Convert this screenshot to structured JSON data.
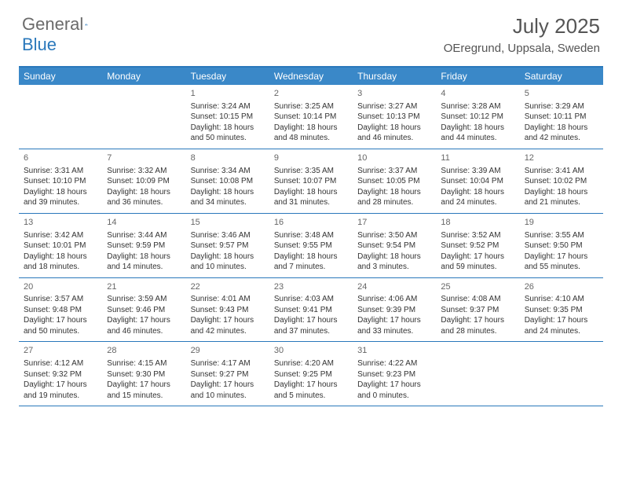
{
  "logo": {
    "part1": "General",
    "part2": "Blue"
  },
  "title": "July 2025",
  "location": "OEregrund, Uppsala, Sweden",
  "day_headers": [
    "Sunday",
    "Monday",
    "Tuesday",
    "Wednesday",
    "Thursday",
    "Friday",
    "Saturday"
  ],
  "colors": {
    "header_bg": "#3a88c8",
    "border": "#2a78bb",
    "logo_gray": "#6b6b6b",
    "logo_blue": "#2a78bb",
    "text": "#333333",
    "muted": "#666666"
  },
  "weeks": [
    [
      null,
      null,
      {
        "n": "1",
        "sunrise": "Sunrise: 3:24 AM",
        "sunset": "Sunset: 10:15 PM",
        "daylight1": "Daylight: 18 hours",
        "daylight2": "and 50 minutes."
      },
      {
        "n": "2",
        "sunrise": "Sunrise: 3:25 AM",
        "sunset": "Sunset: 10:14 PM",
        "daylight1": "Daylight: 18 hours",
        "daylight2": "and 48 minutes."
      },
      {
        "n": "3",
        "sunrise": "Sunrise: 3:27 AM",
        "sunset": "Sunset: 10:13 PM",
        "daylight1": "Daylight: 18 hours",
        "daylight2": "and 46 minutes."
      },
      {
        "n": "4",
        "sunrise": "Sunrise: 3:28 AM",
        "sunset": "Sunset: 10:12 PM",
        "daylight1": "Daylight: 18 hours",
        "daylight2": "and 44 minutes."
      },
      {
        "n": "5",
        "sunrise": "Sunrise: 3:29 AM",
        "sunset": "Sunset: 10:11 PM",
        "daylight1": "Daylight: 18 hours",
        "daylight2": "and 42 minutes."
      }
    ],
    [
      {
        "n": "6",
        "sunrise": "Sunrise: 3:31 AM",
        "sunset": "Sunset: 10:10 PM",
        "daylight1": "Daylight: 18 hours",
        "daylight2": "and 39 minutes."
      },
      {
        "n": "7",
        "sunrise": "Sunrise: 3:32 AM",
        "sunset": "Sunset: 10:09 PM",
        "daylight1": "Daylight: 18 hours",
        "daylight2": "and 36 minutes."
      },
      {
        "n": "8",
        "sunrise": "Sunrise: 3:34 AM",
        "sunset": "Sunset: 10:08 PM",
        "daylight1": "Daylight: 18 hours",
        "daylight2": "and 34 minutes."
      },
      {
        "n": "9",
        "sunrise": "Sunrise: 3:35 AM",
        "sunset": "Sunset: 10:07 PM",
        "daylight1": "Daylight: 18 hours",
        "daylight2": "and 31 minutes."
      },
      {
        "n": "10",
        "sunrise": "Sunrise: 3:37 AM",
        "sunset": "Sunset: 10:05 PM",
        "daylight1": "Daylight: 18 hours",
        "daylight2": "and 28 minutes."
      },
      {
        "n": "11",
        "sunrise": "Sunrise: 3:39 AM",
        "sunset": "Sunset: 10:04 PM",
        "daylight1": "Daylight: 18 hours",
        "daylight2": "and 24 minutes."
      },
      {
        "n": "12",
        "sunrise": "Sunrise: 3:41 AM",
        "sunset": "Sunset: 10:02 PM",
        "daylight1": "Daylight: 18 hours",
        "daylight2": "and 21 minutes."
      }
    ],
    [
      {
        "n": "13",
        "sunrise": "Sunrise: 3:42 AM",
        "sunset": "Sunset: 10:01 PM",
        "daylight1": "Daylight: 18 hours",
        "daylight2": "and 18 minutes."
      },
      {
        "n": "14",
        "sunrise": "Sunrise: 3:44 AM",
        "sunset": "Sunset: 9:59 PM",
        "daylight1": "Daylight: 18 hours",
        "daylight2": "and 14 minutes."
      },
      {
        "n": "15",
        "sunrise": "Sunrise: 3:46 AM",
        "sunset": "Sunset: 9:57 PM",
        "daylight1": "Daylight: 18 hours",
        "daylight2": "and 10 minutes."
      },
      {
        "n": "16",
        "sunrise": "Sunrise: 3:48 AM",
        "sunset": "Sunset: 9:55 PM",
        "daylight1": "Daylight: 18 hours",
        "daylight2": "and 7 minutes."
      },
      {
        "n": "17",
        "sunrise": "Sunrise: 3:50 AM",
        "sunset": "Sunset: 9:54 PM",
        "daylight1": "Daylight: 18 hours",
        "daylight2": "and 3 minutes."
      },
      {
        "n": "18",
        "sunrise": "Sunrise: 3:52 AM",
        "sunset": "Sunset: 9:52 PM",
        "daylight1": "Daylight: 17 hours",
        "daylight2": "and 59 minutes."
      },
      {
        "n": "19",
        "sunrise": "Sunrise: 3:55 AM",
        "sunset": "Sunset: 9:50 PM",
        "daylight1": "Daylight: 17 hours",
        "daylight2": "and 55 minutes."
      }
    ],
    [
      {
        "n": "20",
        "sunrise": "Sunrise: 3:57 AM",
        "sunset": "Sunset: 9:48 PM",
        "daylight1": "Daylight: 17 hours",
        "daylight2": "and 50 minutes."
      },
      {
        "n": "21",
        "sunrise": "Sunrise: 3:59 AM",
        "sunset": "Sunset: 9:46 PM",
        "daylight1": "Daylight: 17 hours",
        "daylight2": "and 46 minutes."
      },
      {
        "n": "22",
        "sunrise": "Sunrise: 4:01 AM",
        "sunset": "Sunset: 9:43 PM",
        "daylight1": "Daylight: 17 hours",
        "daylight2": "and 42 minutes."
      },
      {
        "n": "23",
        "sunrise": "Sunrise: 4:03 AM",
        "sunset": "Sunset: 9:41 PM",
        "daylight1": "Daylight: 17 hours",
        "daylight2": "and 37 minutes."
      },
      {
        "n": "24",
        "sunrise": "Sunrise: 4:06 AM",
        "sunset": "Sunset: 9:39 PM",
        "daylight1": "Daylight: 17 hours",
        "daylight2": "and 33 minutes."
      },
      {
        "n": "25",
        "sunrise": "Sunrise: 4:08 AM",
        "sunset": "Sunset: 9:37 PM",
        "daylight1": "Daylight: 17 hours",
        "daylight2": "and 28 minutes."
      },
      {
        "n": "26",
        "sunrise": "Sunrise: 4:10 AM",
        "sunset": "Sunset: 9:35 PM",
        "daylight1": "Daylight: 17 hours",
        "daylight2": "and 24 minutes."
      }
    ],
    [
      {
        "n": "27",
        "sunrise": "Sunrise: 4:12 AM",
        "sunset": "Sunset: 9:32 PM",
        "daylight1": "Daylight: 17 hours",
        "daylight2": "and 19 minutes."
      },
      {
        "n": "28",
        "sunrise": "Sunrise: 4:15 AM",
        "sunset": "Sunset: 9:30 PM",
        "daylight1": "Daylight: 17 hours",
        "daylight2": "and 15 minutes."
      },
      {
        "n": "29",
        "sunrise": "Sunrise: 4:17 AM",
        "sunset": "Sunset: 9:27 PM",
        "daylight1": "Daylight: 17 hours",
        "daylight2": "and 10 minutes."
      },
      {
        "n": "30",
        "sunrise": "Sunrise: 4:20 AM",
        "sunset": "Sunset: 9:25 PM",
        "daylight1": "Daylight: 17 hours",
        "daylight2": "and 5 minutes."
      },
      {
        "n": "31",
        "sunrise": "Sunrise: 4:22 AM",
        "sunset": "Sunset: 9:23 PM",
        "daylight1": "Daylight: 17 hours",
        "daylight2": "and 0 minutes."
      },
      null,
      null
    ]
  ]
}
